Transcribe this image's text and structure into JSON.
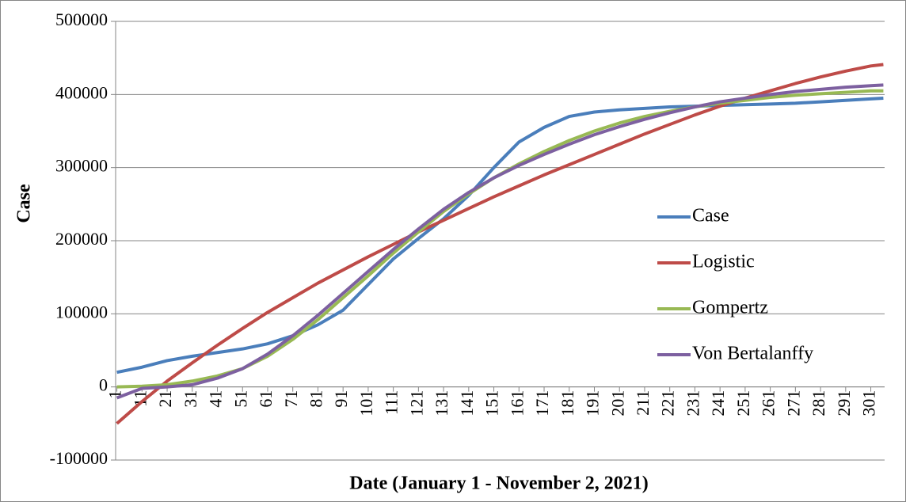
{
  "chart_data": {
    "type": "line",
    "y_label": "Case",
    "x_label": "Date (January 1 - November 2, 2021)",
    "x": [
      1,
      11,
      21,
      31,
      41,
      51,
      61,
      71,
      81,
      91,
      101,
      111,
      121,
      131,
      141,
      151,
      161,
      171,
      181,
      191,
      201,
      211,
      221,
      231,
      241,
      251,
      261,
      271,
      281,
      291,
      301,
      306
    ],
    "series": [
      {
        "name": "Case",
        "color": "#4a7ebb",
        "values": [
          20000,
          27000,
          36000,
          42000,
          47000,
          52000,
          59000,
          70000,
          85000,
          105000,
          140000,
          175000,
          203000,
          230000,
          262000,
          300000,
          335000,
          355000,
          370000,
          376000,
          379000,
          381000,
          383000,
          384000,
          385000,
          386000,
          387000,
          388000,
          390000,
          392000,
          394000,
          395000
        ]
      },
      {
        "name": "Logistic",
        "color": "#be4b48",
        "values": [
          -50000,
          -20000,
          8000,
          33000,
          57000,
          80000,
          102000,
          122000,
          142000,
          160000,
          178000,
          195000,
          212000,
          228000,
          244000,
          260000,
          275000,
          290000,
          304000,
          318000,
          332000,
          346000,
          359000,
          372000,
          384000,
          395000,
          405000,
          415000,
          424000,
          432000,
          439000,
          441000
        ]
      },
      {
        "name": "Gompertz",
        "color": "#98b954",
        "values": [
          0,
          1000,
          3000,
          8000,
          15000,
          25000,
          42000,
          65000,
          92000,
          122000,
          152000,
          183000,
          212000,
          240000,
          264000,
          286000,
          305000,
          322000,
          337000,
          350000,
          361000,
          370000,
          377000,
          383000,
          388000,
          392000,
          396000,
          399000,
          401000,
          403000,
          405000,
          405000
        ]
      },
      {
        "name": "Von Bertalanffy",
        "color": "#7d60a0",
        "values": [
          -15000,
          -2000,
          0,
          3000,
          12000,
          25000,
          45000,
          70000,
          98000,
          128000,
          158000,
          188000,
          216000,
          243000,
          266000,
          286000,
          303000,
          318000,
          332000,
          345000,
          356000,
          366000,
          375000,
          383000,
          390000,
          395000,
          400000,
          404000,
          407000,
          410000,
          412000,
          413000
        ]
      }
    ],
    "xlim": [
      0.5,
      306.5
    ],
    "xticks": [
      1,
      11,
      21,
      31,
      41,
      51,
      61,
      71,
      81,
      91,
      101,
      111,
      121,
      131,
      141,
      151,
      161,
      171,
      181,
      191,
      201,
      211,
      221,
      231,
      241,
      251,
      261,
      271,
      281,
      291,
      301
    ],
    "ylim": [
      -100000,
      500000
    ],
    "yticks": [
      -100000,
      0,
      100000,
      200000,
      300000,
      400000,
      500000
    ],
    "grid": true,
    "legend": "right"
  }
}
